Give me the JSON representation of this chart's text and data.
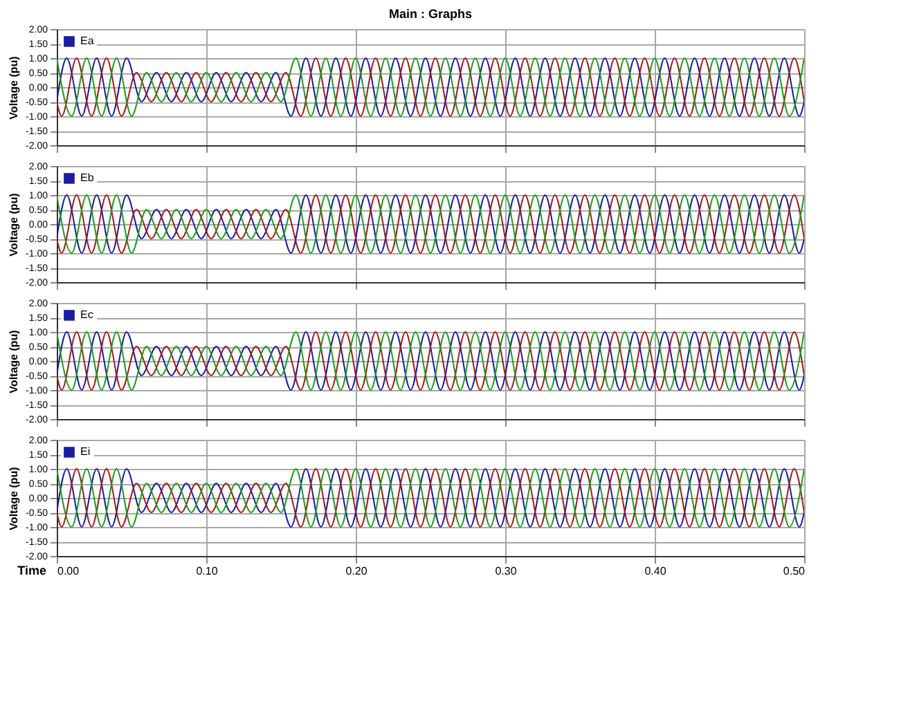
{
  "chart_data": [
    {
      "type": "line",
      "title": "Main : Graphs",
      "ylabel": "Voltage (pu)",
      "legend": "top left",
      "tick_labels": "y",
      "grid": true,
      "xlim": [
        0,
        0.5
      ],
      "xticks": [
        0,
        0.1,
        0.2,
        0.3,
        0.4,
        0.5
      ],
      "ylim": [
        -2,
        2
      ],
      "yticks": [
        {
          "value": -2,
          "label": "-2.00"
        },
        {
          "value": -1.5,
          "label": "-1.50"
        },
        {
          "value": -1,
          "label": "-1.00"
        },
        {
          "value": -0.5,
          "label": "-0.50"
        },
        {
          "value": 0,
          "label": "0.00"
        },
        {
          "value": 0.5,
          "label": "0.50"
        },
        {
          "value": 1,
          "label": "1.00"
        },
        {
          "value": 1.5,
          "label": "1.50"
        },
        {
          "value": 2,
          "label": "2.00"
        }
      ],
      "series": [
        {
          "name": "Ea",
          "color": "#1c1ca0",
          "x": [
            0,
            0.0067,
            0.0167,
            0.0267,
            0.0367,
            0.0467,
            0.0567,
            0.0667,
            0.0767,
            0.0867,
            0.0967,
            0.1067,
            0.1167,
            0.1267,
            0.1367,
            0.1467,
            0.1567,
            0.1667,
            0.1767,
            0.1867,
            0.1967,
            0.2067,
            0.2167,
            0.2267,
            0.2367,
            0.2467,
            0.2567,
            0.2667,
            0.2767,
            0.2867,
            0.2967,
            0.3067,
            0.3167,
            0.3267,
            0.3367,
            0.3467,
            0.3567,
            0.3667,
            0.3767,
            0.3867,
            0.3967,
            0.4067,
            0.4167,
            0.4267,
            0.4367,
            0.4467,
            0.4567,
            0.4667,
            0.4767,
            0.4867,
            0.4967,
            0.5
          ],
          "values": [
            -0.5,
            1,
            -1,
            1,
            -1,
            1,
            -0.5,
            0.5,
            -0.5,
            0.5,
            -0.5,
            0.5,
            -0.5,
            0.5,
            -0.5,
            0.5,
            -1,
            1,
            -1,
            1,
            -1,
            1,
            -1,
            1,
            -1,
            1,
            -1,
            1,
            -1,
            1,
            -1,
            1,
            -1,
            1,
            -1,
            1,
            -1,
            1,
            -1,
            1,
            -1,
            1,
            -1,
            1,
            -1,
            1,
            -1,
            1,
            -1,
            1,
            -1,
            -0.5
          ]
        },
        {
          "color": "#a01c1c",
          "x": [
            0,
            0.0033,
            0.0133,
            0.0233,
            0.0333,
            0.0433,
            0.0533,
            0.0633,
            0.0733,
            0.0833,
            0.0933,
            0.1033,
            0.1133,
            0.1233,
            0.1333,
            0.1433,
            0.1533,
            0.1633,
            0.1733,
            0.1833,
            0.1933,
            0.2033,
            0.2133,
            0.2233,
            0.2333,
            0.2433,
            0.2533,
            0.2633,
            0.2733,
            0.2833,
            0.2933,
            0.3033,
            0.3133,
            0.3233,
            0.3333,
            0.3433,
            0.3533,
            0.3633,
            0.3733,
            0.3833,
            0.3933,
            0.4033,
            0.4133,
            0.4233,
            0.4333,
            0.4433,
            0.4533,
            0.4633,
            0.4733,
            0.4833,
            0.4933,
            0.5
          ],
          "values": [
            -0.5,
            -1,
            1,
            -1,
            1,
            -1,
            0.5,
            -0.5,
            0.5,
            -0.5,
            0.5,
            -0.5,
            0.5,
            -0.5,
            0.5,
            -0.5,
            0.5,
            -1,
            1,
            -1,
            1,
            -1,
            1,
            -1,
            1,
            -1,
            1,
            -1,
            1,
            -1,
            1,
            -1,
            1,
            -1,
            1,
            -1,
            1,
            -1,
            1,
            -1,
            1,
            -1,
            1,
            -1,
            1,
            -1,
            1,
            -1,
            1,
            -1,
            1,
            -0.5
          ]
        },
        {
          "color": "#1f9a1f",
          "x": [
            0,
            0.01,
            0.02,
            0.03,
            0.04,
            0.05,
            0.06,
            0.07,
            0.08,
            0.09,
            0.1,
            0.11,
            0.12,
            0.13,
            0.14,
            0.15,
            0.16,
            0.17,
            0.18,
            0.19,
            0.2,
            0.21,
            0.22,
            0.23,
            0.24,
            0.25,
            0.26,
            0.27,
            0.28,
            0.29,
            0.3,
            0.31,
            0.32,
            0.33,
            0.34,
            0.35,
            0.36,
            0.37,
            0.38,
            0.39,
            0.4,
            0.41,
            0.42,
            0.43,
            0.44,
            0.45,
            0.46,
            0.47,
            0.48,
            0.49,
            0.5
          ],
          "values": [
            1,
            -1,
            1,
            -1,
            1,
            -1,
            0.5,
            -0.5,
            0.5,
            -0.5,
            0.5,
            -0.5,
            0.5,
            -0.5,
            0.5,
            -0.5,
            1,
            -1,
            1,
            -1,
            1,
            -1,
            1,
            -1,
            1,
            -1,
            1,
            -1,
            1,
            -1,
            1,
            -1,
            1,
            -1,
            1,
            -1,
            1,
            -1,
            1,
            -1,
            1,
            -1,
            1,
            -1,
            1,
            -1,
            1,
            -1,
            1,
            -1,
            1
          ]
        }
      ]
    },
    {
      "type": "line",
      "ylabel": "Voltage (pu)",
      "legend": "top left",
      "tick_labels": "y",
      "grid": true,
      "xlim": [
        0,
        0.5
      ],
      "xticks": [
        0,
        0.1,
        0.2,
        0.3,
        0.4,
        0.5
      ],
      "ylim": [
        -2,
        2
      ],
      "yticks": [
        {
          "value": -2,
          "label": "-2.00"
        },
        {
          "value": -1.5,
          "label": "-1.50"
        },
        {
          "value": -1,
          "label": "-1.00"
        },
        {
          "value": -0.5,
          "label": "-0.50"
        },
        {
          "value": 0,
          "label": "0.00"
        },
        {
          "value": 0.5,
          "label": "0.50"
        },
        {
          "value": 1,
          "label": "1.00"
        },
        {
          "value": 1.5,
          "label": "1.50"
        },
        {
          "value": 2,
          "label": "2.00"
        }
      ],
      "series": [
        {
          "name": "Eb",
          "color": "#1c1ca0",
          "x": [
            0,
            0.0067,
            0.0167,
            0.0267,
            0.0367,
            0.0467,
            0.0567,
            0.0667,
            0.0767,
            0.0867,
            0.0967,
            0.1067,
            0.1167,
            0.1267,
            0.1367,
            0.1467,
            0.1567,
            0.1667,
            0.1767,
            0.1867,
            0.1967,
            0.2067,
            0.2167,
            0.2267,
            0.2367,
            0.2467,
            0.2567,
            0.2667,
            0.2767,
            0.2867,
            0.2967,
            0.3067,
            0.3167,
            0.3267,
            0.3367,
            0.3467,
            0.3567,
            0.3667,
            0.3767,
            0.3867,
            0.3967,
            0.4067,
            0.4167,
            0.4267,
            0.4367,
            0.4467,
            0.4567,
            0.4667,
            0.4767,
            0.4867,
            0.4967,
            0.5
          ],
          "values": [
            -0.5,
            1,
            -1,
            1,
            -1,
            1,
            -0.5,
            0.5,
            -0.5,
            0.5,
            -0.5,
            0.5,
            -0.5,
            0.5,
            -0.5,
            0.5,
            -1,
            1,
            -1,
            1,
            -1,
            1,
            -1,
            1,
            -1,
            1,
            -1,
            1,
            -1,
            1,
            -1,
            1,
            -1,
            1,
            -1,
            1,
            -1,
            1,
            -1,
            1,
            -1,
            1,
            -1,
            1,
            -1,
            1,
            -1,
            1,
            -1,
            1,
            -1,
            -0.5
          ]
        },
        {
          "color": "#a01c1c",
          "x": [
            0,
            0.0033,
            0.0133,
            0.0233,
            0.0333,
            0.0433,
            0.0533,
            0.0633,
            0.0733,
            0.0833,
            0.0933,
            0.1033,
            0.1133,
            0.1233,
            0.1333,
            0.1433,
            0.1533,
            0.1633,
            0.1733,
            0.1833,
            0.1933,
            0.2033,
            0.2133,
            0.2233,
            0.2333,
            0.2433,
            0.2533,
            0.2633,
            0.2733,
            0.2833,
            0.2933,
            0.3033,
            0.3133,
            0.3233,
            0.3333,
            0.3433,
            0.3533,
            0.3633,
            0.3733,
            0.3833,
            0.3933,
            0.4033,
            0.4133,
            0.4233,
            0.4333,
            0.4433,
            0.4533,
            0.4633,
            0.4733,
            0.4833,
            0.4933,
            0.5
          ],
          "values": [
            -0.5,
            -1,
            1,
            -1,
            1,
            -1,
            0.5,
            -0.5,
            0.5,
            -0.5,
            0.5,
            -0.5,
            0.5,
            -0.5,
            0.5,
            -0.5,
            0.5,
            -1,
            1,
            -1,
            1,
            -1,
            1,
            -1,
            1,
            -1,
            1,
            -1,
            1,
            -1,
            1,
            -1,
            1,
            -1,
            1,
            -1,
            1,
            -1,
            1,
            -1,
            1,
            -1,
            1,
            -1,
            1,
            -1,
            1,
            -1,
            1,
            -1,
            1,
            -0.5
          ]
        },
        {
          "color": "#1f9a1f",
          "x": [
            0,
            0.01,
            0.02,
            0.03,
            0.04,
            0.05,
            0.06,
            0.07,
            0.08,
            0.09,
            0.1,
            0.11,
            0.12,
            0.13,
            0.14,
            0.15,
            0.16,
            0.17,
            0.18,
            0.19,
            0.2,
            0.21,
            0.22,
            0.23,
            0.24,
            0.25,
            0.26,
            0.27,
            0.28,
            0.29,
            0.3,
            0.31,
            0.32,
            0.33,
            0.34,
            0.35,
            0.36,
            0.37,
            0.38,
            0.39,
            0.4,
            0.41,
            0.42,
            0.43,
            0.44,
            0.45,
            0.46,
            0.47,
            0.48,
            0.49,
            0.5
          ],
          "values": [
            1,
            -1,
            1,
            -1,
            1,
            -1,
            0.5,
            -0.5,
            0.5,
            -0.5,
            0.5,
            -0.5,
            0.5,
            -0.5,
            0.5,
            -0.5,
            1,
            -1,
            1,
            -1,
            1,
            -1,
            1,
            -1,
            1,
            -1,
            1,
            -1,
            1,
            -1,
            1,
            -1,
            1,
            -1,
            1,
            -1,
            1,
            -1,
            1,
            -1,
            1,
            -1,
            1,
            -1,
            1,
            -1,
            1,
            -1,
            1,
            -1,
            1
          ]
        }
      ]
    },
    {
      "type": "line",
      "ylabel": "Voltage (pu)",
      "legend": "top left",
      "tick_labels": "y",
      "grid": true,
      "xlim": [
        0,
        0.5
      ],
      "xticks": [
        0,
        0.1,
        0.2,
        0.3,
        0.4,
        0.5
      ],
      "ylim": [
        -2,
        2
      ],
      "yticks": [
        {
          "value": -2,
          "label": "-2.00"
        },
        {
          "value": -1.5,
          "label": "-1.50"
        },
        {
          "value": -1,
          "label": "-1.00"
        },
        {
          "value": -0.5,
          "label": "-0.50"
        },
        {
          "value": 0,
          "label": "0.00"
        },
        {
          "value": 0.5,
          "label": "0.50"
        },
        {
          "value": 1,
          "label": "1.00"
        },
        {
          "value": 1.5,
          "label": "1.50"
        },
        {
          "value": 2,
          "label": "2.00"
        }
      ],
      "series": [
        {
          "name": "Ec",
          "color": "#1c1ca0",
          "x": [
            0,
            0.0067,
            0.0167,
            0.0267,
            0.0367,
            0.0467,
            0.0567,
            0.0667,
            0.0767,
            0.0867,
            0.0967,
            0.1067,
            0.1167,
            0.1267,
            0.1367,
            0.1467,
            0.1567,
            0.1667,
            0.1767,
            0.1867,
            0.1967,
            0.2067,
            0.2167,
            0.2267,
            0.2367,
            0.2467,
            0.2567,
            0.2667,
            0.2767,
            0.2867,
            0.2967,
            0.3067,
            0.3167,
            0.3267,
            0.3367,
            0.3467,
            0.3567,
            0.3667,
            0.3767,
            0.3867,
            0.3967,
            0.4067,
            0.4167,
            0.4267,
            0.4367,
            0.4467,
            0.4567,
            0.4667,
            0.4767,
            0.4867,
            0.4967,
            0.5
          ],
          "values": [
            -0.5,
            1,
            -1,
            1,
            -1,
            1,
            -0.5,
            0.5,
            -0.5,
            0.5,
            -0.5,
            0.5,
            -0.5,
            0.5,
            -0.5,
            0.5,
            -1,
            1,
            -1,
            1,
            -1,
            1,
            -1,
            1,
            -1,
            1,
            -1,
            1,
            -1,
            1,
            -1,
            1,
            -1,
            1,
            -1,
            1,
            -1,
            1,
            -1,
            1,
            -1,
            1,
            -1,
            1,
            -1,
            1,
            -1,
            1,
            -1,
            1,
            -1,
            -0.5
          ]
        },
        {
          "color": "#a01c1c",
          "x": [
            0,
            0.0033,
            0.0133,
            0.0233,
            0.0333,
            0.0433,
            0.0533,
            0.0633,
            0.0733,
            0.0833,
            0.0933,
            0.1033,
            0.1133,
            0.1233,
            0.1333,
            0.1433,
            0.1533,
            0.1633,
            0.1733,
            0.1833,
            0.1933,
            0.2033,
            0.2133,
            0.2233,
            0.2333,
            0.2433,
            0.2533,
            0.2633,
            0.2733,
            0.2833,
            0.2933,
            0.3033,
            0.3133,
            0.3233,
            0.3333,
            0.3433,
            0.3533,
            0.3633,
            0.3733,
            0.3833,
            0.3933,
            0.4033,
            0.4133,
            0.4233,
            0.4333,
            0.4433,
            0.4533,
            0.4633,
            0.4733,
            0.4833,
            0.4933,
            0.5
          ],
          "values": [
            -0.5,
            -1,
            1,
            -1,
            1,
            -1,
            0.5,
            -0.5,
            0.5,
            -0.5,
            0.5,
            -0.5,
            0.5,
            -0.5,
            0.5,
            -0.5,
            0.5,
            -1,
            1,
            -1,
            1,
            -1,
            1,
            -1,
            1,
            -1,
            1,
            -1,
            1,
            -1,
            1,
            -1,
            1,
            -1,
            1,
            -1,
            1,
            -1,
            1,
            -1,
            1,
            -1,
            1,
            -1,
            1,
            -1,
            1,
            -1,
            1,
            -1,
            1,
            -0.5
          ]
        },
        {
          "color": "#1f9a1f",
          "x": [
            0,
            0.01,
            0.02,
            0.03,
            0.04,
            0.05,
            0.06,
            0.07,
            0.08,
            0.09,
            0.1,
            0.11,
            0.12,
            0.13,
            0.14,
            0.15,
            0.16,
            0.17,
            0.18,
            0.19,
            0.2,
            0.21,
            0.22,
            0.23,
            0.24,
            0.25,
            0.26,
            0.27,
            0.28,
            0.29,
            0.3,
            0.31,
            0.32,
            0.33,
            0.34,
            0.35,
            0.36,
            0.37,
            0.38,
            0.39,
            0.4,
            0.41,
            0.42,
            0.43,
            0.44,
            0.45,
            0.46,
            0.47,
            0.48,
            0.49,
            0.5
          ],
          "values": [
            1,
            -1,
            1,
            -1,
            1,
            -1,
            0.5,
            -0.5,
            0.5,
            -0.5,
            0.5,
            -0.5,
            0.5,
            -0.5,
            0.5,
            -0.5,
            1,
            -1,
            1,
            -1,
            1,
            -1,
            1,
            -1,
            1,
            -1,
            1,
            -1,
            1,
            -1,
            1,
            -1,
            1,
            -1,
            1,
            -1,
            1,
            -1,
            1,
            -1,
            1,
            -1,
            1,
            -1,
            1,
            -1,
            1,
            -1,
            1,
            -1,
            1
          ]
        }
      ]
    },
    {
      "type": "line",
      "xlabel": "Time",
      "ylabel": "Voltage (pu)",
      "legend": "top left",
      "grid": true,
      "xlim": [
        0,
        0.5
      ],
      "xticks": [
        {
          "value": 0,
          "label": "0.00"
        },
        {
          "value": 0.1,
          "label": "0.10"
        },
        {
          "value": 0.2,
          "label": "0.20"
        },
        {
          "value": 0.3,
          "label": "0.30"
        },
        {
          "value": 0.4,
          "label": "0.40"
        },
        {
          "value": 0.5,
          "label": "0.50"
        }
      ],
      "ylim": [
        -2,
        2
      ],
      "yticks": [
        {
          "value": -2,
          "label": "-2.00"
        },
        {
          "value": -1.5,
          "label": "-1.50"
        },
        {
          "value": -1,
          "label": "-1.00"
        },
        {
          "value": -0.5,
          "label": "-0.50"
        },
        {
          "value": 0,
          "label": "0.00"
        },
        {
          "value": 0.5,
          "label": "0.50"
        },
        {
          "value": 1,
          "label": "1.00"
        },
        {
          "value": 1.5,
          "label": "1.50"
        },
        {
          "value": 2,
          "label": "2.00"
        }
      ],
      "series": [
        {
          "name": "Ei",
          "color": "#1c1ca0",
          "x": [
            0,
            0.0067,
            0.0167,
            0.0267,
            0.0367,
            0.0467,
            0.0567,
            0.0667,
            0.0767,
            0.0867,
            0.0967,
            0.1067,
            0.1167,
            0.1267,
            0.1367,
            0.1467,
            0.1567,
            0.1667,
            0.1767,
            0.1867,
            0.1967,
            0.2067,
            0.2167,
            0.2267,
            0.2367,
            0.2467,
            0.2567,
            0.2667,
            0.2767,
            0.2867,
            0.2967,
            0.3067,
            0.3167,
            0.3267,
            0.3367,
            0.3467,
            0.3567,
            0.3667,
            0.3767,
            0.3867,
            0.3967,
            0.4067,
            0.4167,
            0.4267,
            0.4367,
            0.4467,
            0.4567,
            0.4667,
            0.4767,
            0.4867,
            0.4967,
            0.5
          ],
          "values": [
            -0.5,
            1,
            -1,
            1,
            -1,
            1,
            -0.5,
            0.5,
            -0.5,
            0.5,
            -0.5,
            0.5,
            -0.5,
            0.5,
            -0.5,
            0.5,
            -1,
            1,
            -1,
            1,
            -1,
            1,
            -1,
            1,
            -1,
            1,
            -1,
            1,
            -1,
            1,
            -1,
            1,
            -1,
            1,
            -1,
            1,
            -1,
            1,
            -1,
            1,
            -1,
            1,
            -1,
            1,
            -1,
            1,
            -1,
            1,
            -1,
            1,
            -1,
            -0.5
          ]
        },
        {
          "color": "#a01c1c",
          "x": [
            0,
            0.0033,
            0.0133,
            0.0233,
            0.0333,
            0.0433,
            0.0533,
            0.0633,
            0.0733,
            0.0833,
            0.0933,
            0.1033,
            0.1133,
            0.1233,
            0.1333,
            0.1433,
            0.1533,
            0.1633,
            0.1733,
            0.1833,
            0.1933,
            0.2033,
            0.2133,
            0.2233,
            0.2333,
            0.2433,
            0.2533,
            0.2633,
            0.2733,
            0.2833,
            0.2933,
            0.3033,
            0.3133,
            0.3233,
            0.3333,
            0.3433,
            0.3533,
            0.3633,
            0.3733,
            0.3833,
            0.3933,
            0.4033,
            0.4133,
            0.4233,
            0.4333,
            0.4433,
            0.4533,
            0.4633,
            0.4733,
            0.4833,
            0.4933,
            0.5
          ],
          "values": [
            -0.5,
            -1,
            1,
            -1,
            1,
            -1,
            0.5,
            -0.5,
            0.5,
            -0.5,
            0.5,
            -0.5,
            0.5,
            -0.5,
            0.5,
            -0.5,
            0.5,
            -1,
            1,
            -1,
            1,
            -1,
            1,
            -1,
            1,
            -1,
            1,
            -1,
            1,
            -1,
            1,
            -1,
            1,
            -1,
            1,
            -1,
            1,
            -1,
            1,
            -1,
            1,
            -1,
            1,
            -1,
            1,
            -1,
            1,
            -1,
            1,
            -1,
            1,
            -0.5
          ]
        },
        {
          "color": "#1f9a1f",
          "x": [
            0,
            0.01,
            0.02,
            0.03,
            0.04,
            0.05,
            0.06,
            0.07,
            0.08,
            0.09,
            0.1,
            0.11,
            0.12,
            0.13,
            0.14,
            0.15,
            0.16,
            0.17,
            0.18,
            0.19,
            0.2,
            0.21,
            0.22,
            0.23,
            0.24,
            0.25,
            0.26,
            0.27,
            0.28,
            0.29,
            0.3,
            0.31,
            0.32,
            0.33,
            0.34,
            0.35,
            0.36,
            0.37,
            0.38,
            0.39,
            0.4,
            0.41,
            0.42,
            0.43,
            0.44,
            0.45,
            0.46,
            0.47,
            0.48,
            0.49,
            0.5
          ],
          "values": [
            1,
            -1,
            1,
            -1,
            1,
            -1,
            0.5,
            -0.5,
            0.5,
            -0.5,
            0.5,
            -0.5,
            0.5,
            -0.5,
            0.5,
            -0.5,
            1,
            -1,
            1,
            -1,
            1,
            -1,
            1,
            -1,
            1,
            -1,
            1,
            -1,
            1,
            -1,
            1,
            -1,
            1,
            -1,
            1,
            -1,
            1,
            -1,
            1,
            -1,
            1,
            -1,
            1,
            -1,
            1,
            -1,
            1,
            -1,
            1,
            -1,
            1
          ]
        }
      ]
    }
  ]
}
